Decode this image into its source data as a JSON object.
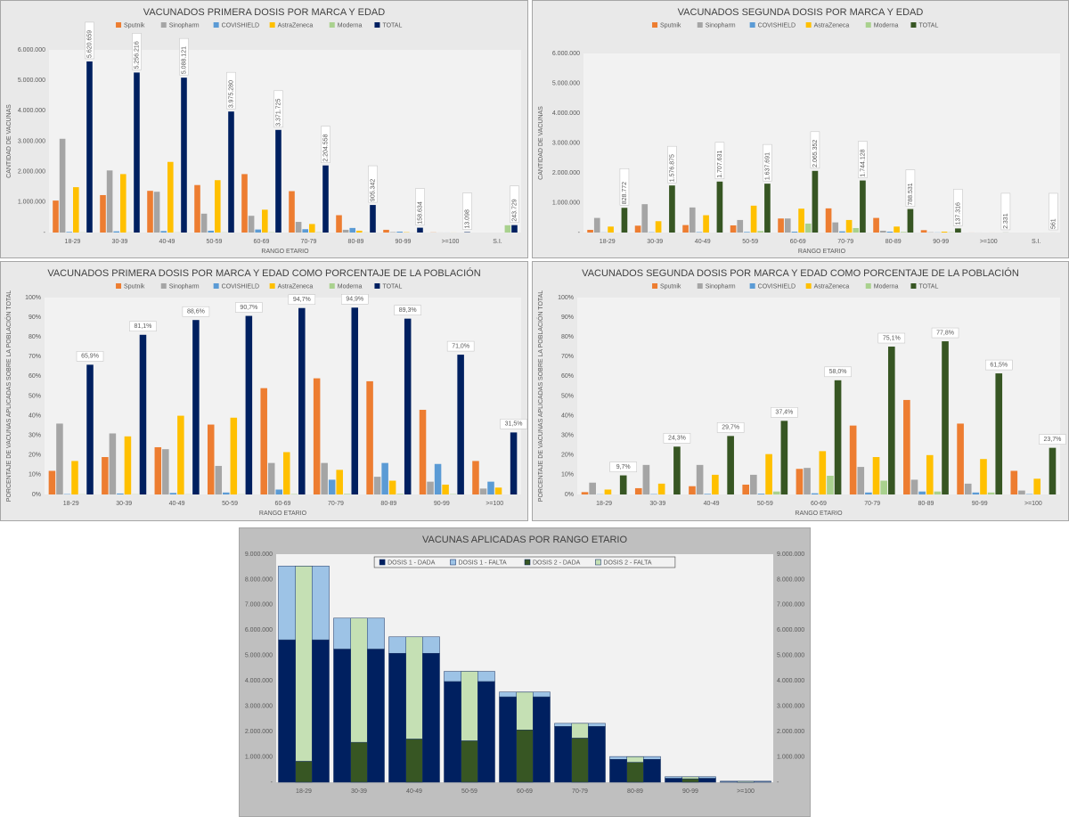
{
  "chart_data": [
    {
      "type": "bar",
      "title": "VACUNADOS PRIMERA DOSIS POR MARCA Y EDAD",
      "ylabel": "CANTIDAD  DE  VACUNAS",
      "xlabel": "RANGO  ETARIO",
      "categories": [
        "18-29",
        "30-39",
        "40-49",
        "50-59",
        "60-69",
        "70-79",
        "80-89",
        "90-99",
        ">=100",
        "S.I."
      ],
      "ylim": [
        0,
        6000000
      ],
      "yticks": [
        {
          "value": 0,
          "label": "-"
        },
        {
          "value": 1000000,
          "label": "1.000.000"
        },
        {
          "value": 2000000,
          "label": "2.000.000"
        },
        {
          "value": 3000000,
          "label": "3.000.000"
        },
        {
          "value": 4000000,
          "label": "4.000.000"
        },
        {
          "value": 5000000,
          "label": "5.000.000"
        },
        {
          "value": 6000000,
          "label": "6.000.000"
        }
      ],
      "grid": false,
      "legend": "top",
      "series": [
        {
          "name": "Sputnik",
          "color": "#ed7d31",
          "values": [
            1050000,
            1230000,
            1370000,
            1560000,
            1920000,
            1360000,
            570000,
            90000,
            5000,
            0
          ]
        },
        {
          "name": "Sinopharm",
          "color": "#a5a5a5",
          "values": [
            3080000,
            2040000,
            1340000,
            620000,
            550000,
            350000,
            90000,
            15000,
            1000,
            0
          ]
        },
        {
          "name": "COVISHIELD",
          "color": "#5b9bd5",
          "values": [
            20000,
            40000,
            50000,
            60000,
            100000,
            110000,
            150000,
            30000,
            1000,
            0
          ]
        },
        {
          "name": "AstraZeneca",
          "color": "#ffc000",
          "values": [
            1490000,
            1920000,
            2320000,
            1720000,
            750000,
            280000,
            60000,
            10000,
            1000,
            0
          ]
        },
        {
          "name": "Moderna",
          "color": "#a9d18e",
          "values": [
            5000,
            5000,
            5000,
            5000,
            10000,
            10000,
            5000,
            1000,
            0,
            240000
          ]
        },
        {
          "name": "TOTAL",
          "color": "#002060",
          "values": [
            5620659,
            5256216,
            5088121,
            3975280,
            3371725,
            2204558,
            905342,
            158634,
            13098,
            243729
          ],
          "value_labels": [
            "5.620.659",
            "5.256.216",
            "5.088.121",
            "3.975.280",
            "3.371.725",
            "2.204.558",
            "905.342",
            "158.634",
            "13.098",
            "243.729"
          ]
        }
      ]
    },
    {
      "type": "bar",
      "title": "VACUNADOS SEGUNDA DOSIS POR MARCA Y EDAD",
      "ylabel": "CANTIDAD  DE  VACUNAS",
      "xlabel": "RANGO  ETARIO",
      "categories": [
        "18-29",
        "30-39",
        "40-49",
        "50-59",
        "60-69",
        "70-79",
        "80-89",
        "90-99",
        ">=100",
        "S.I."
      ],
      "ylim": [
        0,
        6000000
      ],
      "yticks": [
        {
          "value": 0,
          "label": "-"
        },
        {
          "value": 1000000,
          "label": "1.000.000"
        },
        {
          "value": 2000000,
          "label": "2.000.000"
        },
        {
          "value": 3000000,
          "label": "3.000.000"
        },
        {
          "value": 4000000,
          "label": "4.000.000"
        },
        {
          "value": 5000000,
          "label": "5.000.000"
        },
        {
          "value": 6000000,
          "label": "6.000.000"
        }
      ],
      "grid": false,
      "legend": "top",
      "series": [
        {
          "name": "Sputnik",
          "color": "#ed7d31",
          "values": [
            90000,
            230000,
            250000,
            240000,
            470000,
            810000,
            490000,
            80000,
            1000,
            0
          ]
        },
        {
          "name": "Sinopharm",
          "color": "#a5a5a5",
          "values": [
            490000,
            950000,
            840000,
            420000,
            470000,
            340000,
            60000,
            10000,
            500,
            0
          ]
        },
        {
          "name": "COVISHIELD",
          "color": "#5b9bd5",
          "values": [
            5000,
            10000,
            15000,
            20000,
            30000,
            40000,
            30000,
            5000,
            0,
            0
          ]
        },
        {
          "name": "AstraZeneca",
          "color": "#ffc000",
          "values": [
            200000,
            380000,
            580000,
            900000,
            800000,
            420000,
            200000,
            30000,
            500,
            0
          ]
        },
        {
          "name": "Moderna",
          "color": "#a9d18e",
          "values": [
            0,
            0,
            0,
            50000,
            300000,
            150000,
            20000,
            10000,
            300,
            500
          ]
        },
        {
          "name": "TOTAL",
          "color": "#375623",
          "values": [
            828772,
            1576875,
            1707631,
            1637691,
            2065352,
            1744128,
            788531,
            137316,
            2331,
            561
          ],
          "value_labels": [
            "828.772",
            "1.576.875",
            "1.707.631",
            "1.637.691",
            "2.065.352",
            "1.744.128",
            "788.531",
            "137.316",
            "2.331",
            "561"
          ]
        }
      ]
    },
    {
      "type": "bar",
      "title": "VACUNADOS PRIMERA DOSIS POR MARCA Y EDAD COMO PORCENTAJE DE LA POBLACIÓN",
      "ylabel": "PORCENTAJE  DE  VACUNAS  APLICADAS  SOBRE  LA  POBLACIÓN  TOTAL",
      "xlabel": "RANGO  ETARIO",
      "categories": [
        "18-29",
        "30-39",
        "40-49",
        "50-59",
        "60-69",
        "70-79",
        "80-89",
        "90-99",
        ">=100"
      ],
      "ylim": [
        0,
        100
      ],
      "yticks": [
        {
          "value": 0,
          "label": "0%"
        },
        {
          "value": 10,
          "label": "10%"
        },
        {
          "value": 20,
          "label": "20%"
        },
        {
          "value": 30,
          "label": "30%"
        },
        {
          "value": 40,
          "label": "40%"
        },
        {
          "value": 50,
          "label": "50%"
        },
        {
          "value": 60,
          "label": "60%"
        },
        {
          "value": 70,
          "label": "70%"
        },
        {
          "value": 80,
          "label": "80%"
        },
        {
          "value": 90,
          "label": "90%"
        },
        {
          "value": 100,
          "label": "100%"
        }
      ],
      "grid": false,
      "legend": "top",
      "series": [
        {
          "name": "Sputnik",
          "color": "#ed7d31",
          "values": [
            12,
            19,
            24,
            35.5,
            54,
            59,
            57.5,
            43,
            17
          ]
        },
        {
          "name": "Sinopharm",
          "color": "#a5a5a5",
          "values": [
            36,
            31,
            23,
            14.5,
            16,
            16,
            9,
            6.5,
            3
          ]
        },
        {
          "name": "COVISHIELD",
          "color": "#5b9bd5",
          "values": [
            0.2,
            0.5,
            0.8,
            1,
            2.5,
            7.5,
            16,
            15.5,
            6.5
          ]
        },
        {
          "name": "AstraZeneca",
          "color": "#ffc000",
          "values": [
            17,
            29.5,
            40,
            39,
            21.5,
            12.5,
            7,
            5,
            3.5
          ]
        },
        {
          "name": "Moderna",
          "color": "#a9d18e",
          "values": [
            0.1,
            0.1,
            0.1,
            0.1,
            0.2,
            0.3,
            0.3,
            0.2,
            0
          ]
        },
        {
          "name": "TOTAL",
          "color": "#002060",
          "values": [
            65.9,
            81.1,
            88.6,
            90.7,
            94.7,
            94.9,
            89.3,
            71.0,
            31.5
          ],
          "value_labels": [
            "65,9%",
            "81,1%",
            "88,6%",
            "90,7%",
            "94,7%",
            "94,9%",
            "89,3%",
            "71,0%",
            "31,5%"
          ]
        }
      ]
    },
    {
      "type": "bar",
      "title": "VACUNADOS SEGUNDA DOSIS POR MARCA Y EDAD COMO PORCENTAJE DE LA POBLACIÓN",
      "ylabel": "PORCENTAJE  DE  VACUNAS  APLICADAS  SOBRE  LA  POBLACIÓN  TOTAL",
      "xlabel": "RANGO  ETARIO",
      "categories": [
        "18-29",
        "30-39",
        "40-49",
        "50-59",
        "60-69",
        "70-79",
        "80-89",
        "90-99",
        ">=100"
      ],
      "ylim": [
        0,
        100
      ],
      "yticks": [
        {
          "value": 0,
          "label": "0%"
        },
        {
          "value": 10,
          "label": "10%"
        },
        {
          "value": 20,
          "label": "20%"
        },
        {
          "value": 30,
          "label": "30%"
        },
        {
          "value": 40,
          "label": "40%"
        },
        {
          "value": 50,
          "label": "50%"
        },
        {
          "value": 60,
          "label": "60%"
        },
        {
          "value": 70,
          "label": "70%"
        },
        {
          "value": 80,
          "label": "80%"
        },
        {
          "value": 90,
          "label": "90%"
        },
        {
          "value": 100,
          "label": "100%"
        }
      ],
      "grid": false,
      "legend": "top",
      "series": [
        {
          "name": "Sputnik",
          "color": "#ed7d31",
          "values": [
            1.2,
            3.2,
            4.2,
            5,
            13,
            35,
            48,
            36,
            12
          ]
        },
        {
          "name": "Sinopharm",
          "color": "#a5a5a5",
          "values": [
            6,
            15,
            15,
            10,
            13.5,
            14,
            7.5,
            5.5,
            2
          ]
        },
        {
          "name": "COVISHIELD",
          "color": "#5b9bd5",
          "values": [
            0.1,
            0.2,
            0.3,
            0.4,
            0.6,
            1,
            1.5,
            1,
            0.2
          ]
        },
        {
          "name": "AstraZeneca",
          "color": "#ffc000",
          "values": [
            2.5,
            5.5,
            10,
            20.5,
            22,
            19,
            20,
            18,
            8
          ]
        },
        {
          "name": "Moderna",
          "color": "#a9d18e",
          "values": [
            0,
            0,
            0,
            1.5,
            9.5,
            7,
            1.5,
            1,
            0
          ]
        },
        {
          "name": "TOTAL",
          "color": "#375623",
          "values": [
            9.7,
            24.3,
            29.7,
            37.4,
            58.0,
            75.1,
            77.8,
            61.5,
            23.7
          ],
          "value_labels": [
            "9,7%",
            "24,3%",
            "29,7%",
            "37,4%",
            "58,0%",
            "75,1%",
            "77,8%",
            "61,5%",
            "23,7%"
          ]
        }
      ]
    },
    {
      "type": "stacked_bar",
      "title": "VACUNAS APLICADAS POR RANGO ETARIO",
      "categories": [
        "18-29",
        "30-39",
        "40-49",
        "50-59",
        "60-69",
        "70-79",
        "80-89",
        "90-99",
        ">=100"
      ],
      "ylim": [
        0,
        9000000
      ],
      "yticks": [
        {
          "value": 0,
          "label": "-"
        },
        {
          "value": 1000000,
          "label": "1.000.000"
        },
        {
          "value": 2000000,
          "label": "2.000.000"
        },
        {
          "value": 3000000,
          "label": "3.000.000"
        },
        {
          "value": 4000000,
          "label": "4.000.000"
        },
        {
          "value": 5000000,
          "label": "5.000.000"
        },
        {
          "value": 6000000,
          "label": "6.000.000"
        },
        {
          "value": 7000000,
          "label": "7.000.000"
        },
        {
          "value": 8000000,
          "label": "8.000.000"
        },
        {
          "value": 9000000,
          "label": "9.000.000"
        }
      ],
      "y2lim": [
        0,
        9000000
      ],
      "y2ticks": [
        {
          "value": 0,
          "label": "-"
        },
        {
          "value": 1000000,
          "label": "1.000.000"
        },
        {
          "value": 2000000,
          "label": "2.000.000"
        },
        {
          "value": 3000000,
          "label": "3.000.000"
        },
        {
          "value": 4000000,
          "label": "4.000.000"
        },
        {
          "value": 5000000,
          "label": "5.000.000"
        },
        {
          "value": 6000000,
          "label": "6.000.000"
        },
        {
          "value": 7000000,
          "label": "7.000.000"
        },
        {
          "value": 8000000,
          "label": "8.000.000"
        },
        {
          "value": 9000000,
          "label": "9.000.000"
        }
      ],
      "grid": false,
      "legend": "top",
      "series": [
        {
          "name": "DOSIS 1 - DADA",
          "color": "#002060",
          "values": [
            5620659,
            5256216,
            5088121,
            3975280,
            3371725,
            2204558,
            905342,
            158634,
            13098
          ]
        },
        {
          "name": "DOSIS 1 - FALTA",
          "color": "#9dc3e6",
          "values": [
            2910000,
            1220000,
            650000,
            400000,
            190000,
            120000,
            110000,
            60000,
            30000
          ]
        },
        {
          "name": "DOSIS 2 - DADA",
          "color": "#375623",
          "axis": "y2",
          "values": [
            828772,
            1576875,
            1707631,
            1637691,
            2065352,
            1744128,
            788531,
            137316,
            2331
          ]
        },
        {
          "name": "DOSIS 2 - FALTA",
          "color": "#c5e0b4",
          "axis": "y2",
          "values": [
            7700000,
            4900000,
            4030000,
            2740000,
            1490000,
            580000,
            220000,
            80000,
            40000
          ]
        }
      ]
    }
  ]
}
